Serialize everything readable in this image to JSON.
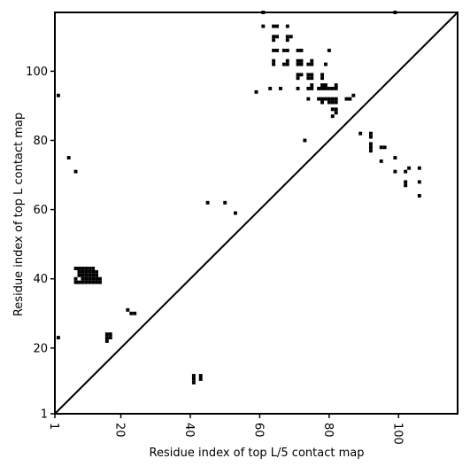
{
  "chart_data": {
    "type": "scatter",
    "title": "",
    "xlabel": "Residue index of top L/5 contact map",
    "ylabel": "Residue index of top L contact map",
    "xlim": [
      1,
      117
    ],
    "ylim": [
      1,
      117
    ],
    "xticks": [
      1,
      20,
      40,
      60,
      80,
      100
    ],
    "yticks": [
      1,
      20,
      40,
      60,
      80,
      100
    ],
    "grid": false,
    "legend": "none",
    "colors": {
      "marker": "#000000",
      "diagonal": "#000000",
      "frame": "#000000"
    },
    "diagonal": {
      "from": [
        1,
        1
      ],
      "to": [
        117,
        117
      ]
    },
    "series": [
      {
        "points": [
          [
            61,
            117
          ],
          [
            99,
            117
          ],
          [
            61,
            113
          ],
          [
            64,
            113
          ],
          [
            65,
            113
          ],
          [
            68,
            113
          ],
          [
            64,
            110
          ],
          [
            65,
            110
          ],
          [
            68,
            110
          ],
          [
            69,
            110
          ],
          [
            64,
            109
          ],
          [
            68,
            109
          ],
          [
            64,
            106
          ],
          [
            65,
            106
          ],
          [
            67,
            106
          ],
          [
            68,
            106
          ],
          [
            71,
            106
          ],
          [
            72,
            106
          ],
          [
            80,
            106
          ],
          [
            64,
            103
          ],
          [
            68,
            103
          ],
          [
            71,
            103
          ],
          [
            72,
            103
          ],
          [
            75,
            103
          ],
          [
            64,
            102
          ],
          [
            67,
            102
          ],
          [
            68,
            102
          ],
          [
            71,
            102
          ],
          [
            72,
            102
          ],
          [
            74,
            102
          ],
          [
            75,
            102
          ],
          [
            79,
            102
          ],
          [
            71,
            99
          ],
          [
            72,
            99
          ],
          [
            74,
            99
          ],
          [
            75,
            99
          ],
          [
            78,
            99
          ],
          [
            71,
            98
          ],
          [
            74,
            98
          ],
          [
            75,
            98
          ],
          [
            78,
            98
          ],
          [
            63,
            95
          ],
          [
            66,
            95
          ],
          [
            71,
            95
          ],
          [
            74,
            95
          ],
          [
            75,
            95
          ],
          [
            77,
            95
          ],
          [
            78,
            95
          ],
          [
            79,
            95
          ],
          [
            80,
            95
          ],
          [
            81,
            95
          ],
          [
            82,
            95
          ],
          [
            59,
            94
          ],
          [
            78,
            96
          ],
          [
            79,
            96
          ],
          [
            82,
            96
          ],
          [
            75,
            96
          ],
          [
            87,
            93
          ],
          [
            74,
            92
          ],
          [
            77,
            92
          ],
          [
            78,
            92
          ],
          [
            79,
            92
          ],
          [
            80,
            92
          ],
          [
            81,
            92
          ],
          [
            82,
            92
          ],
          [
            85,
            92
          ],
          [
            86,
            92
          ],
          [
            78,
            91
          ],
          [
            80,
            91
          ],
          [
            81,
            91
          ],
          [
            82,
            91
          ],
          [
            81,
            89
          ],
          [
            82,
            89
          ],
          [
            82,
            88
          ],
          [
            81,
            87
          ],
          [
            2,
            93
          ],
          [
            89,
            82
          ],
          [
            92,
            82
          ],
          [
            92,
            81
          ],
          [
            73,
            80
          ],
          [
            92,
            79
          ],
          [
            92,
            78
          ],
          [
            95,
            78
          ],
          [
            96,
            78
          ],
          [
            92,
            77
          ],
          [
            5,
            75
          ],
          [
            99,
            75
          ],
          [
            95,
            74
          ],
          [
            7,
            71
          ],
          [
            99,
            71
          ],
          [
            102,
            71
          ],
          [
            103,
            72
          ],
          [
            106,
            72
          ],
          [
            102,
            68
          ],
          [
            106,
            68
          ],
          [
            102,
            67
          ],
          [
            106,
            64
          ],
          [
            45,
            62
          ],
          [
            50,
            62
          ],
          [
            53,
            59
          ],
          [
            7,
            43
          ],
          [
            8,
            43
          ],
          [
            9,
            43
          ],
          [
            10,
            43
          ],
          [
            11,
            43
          ],
          [
            12,
            43
          ],
          [
            8,
            42
          ],
          [
            9,
            42
          ],
          [
            10,
            42
          ],
          [
            11,
            42
          ],
          [
            12,
            42
          ],
          [
            13,
            42
          ],
          [
            8,
            41
          ],
          [
            9,
            41
          ],
          [
            10,
            41
          ],
          [
            11,
            41
          ],
          [
            12,
            41
          ],
          [
            13,
            41
          ],
          [
            7,
            40
          ],
          [
            9,
            40
          ],
          [
            10,
            40
          ],
          [
            11,
            40
          ],
          [
            12,
            40
          ],
          [
            13,
            40
          ],
          [
            14,
            40
          ],
          [
            7,
            39
          ],
          [
            8,
            39
          ],
          [
            9,
            39
          ],
          [
            10,
            39
          ],
          [
            11,
            39
          ],
          [
            12,
            39
          ],
          [
            13,
            39
          ],
          [
            14,
            39
          ],
          [
            22,
            31
          ],
          [
            23,
            30
          ],
          [
            24,
            30
          ],
          [
            16,
            24
          ],
          [
            17,
            24
          ],
          [
            16,
            23
          ],
          [
            17,
            23
          ],
          [
            16,
            22
          ],
          [
            2,
            23
          ],
          [
            41,
            12
          ],
          [
            43,
            12
          ],
          [
            41,
            11
          ],
          [
            43,
            11
          ],
          [
            41,
            10
          ]
        ]
      }
    ]
  }
}
